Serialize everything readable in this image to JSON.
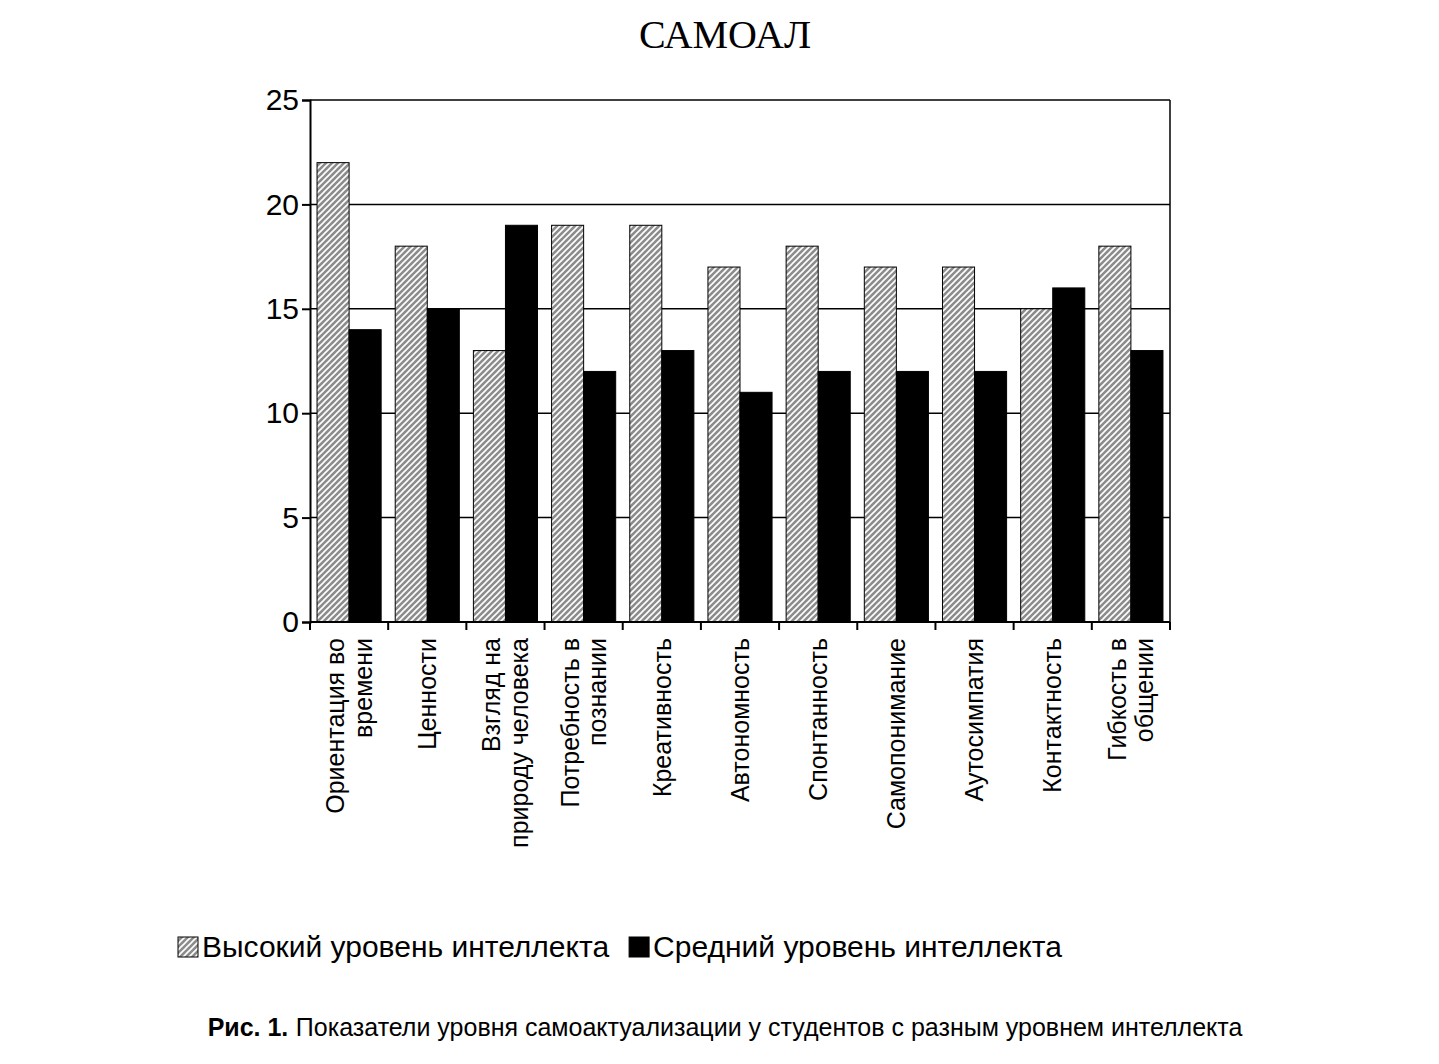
{
  "chart_data": {
    "type": "bar",
    "title": "САМОАЛ",
    "caption_label": "Рис. 1.",
    "caption": "Показатели уровня самоактуализации у студентов с разным уровнем интеллекта",
    "categories": [
      "Ориентация во времени",
      "Ценности",
      "Взгляд на природу человека",
      "Потребность в познании",
      "Креативность",
      "Автономность",
      "Спонтанность",
      "Самопонимание",
      "Аутосимпатия",
      "Контактность",
      "Гибкость в общении"
    ],
    "series": [
      {
        "name": "Высокий уровень интеллекта",
        "color": "#8c8c8c",
        "values": [
          22,
          18,
          13,
          19,
          19,
          17,
          18,
          17,
          17,
          15,
          18
        ]
      },
      {
        "name": "Средний уровень интеллекта",
        "color": "#000000",
        "values": [
          14,
          15,
          19,
          12,
          13,
          11,
          12,
          12,
          12,
          16,
          13
        ]
      }
    ],
    "ylim": [
      0,
      25
    ],
    "yticks": [
      0,
      5,
      10,
      15,
      20,
      25
    ],
    "grid": true,
    "legend": "bottom"
  }
}
